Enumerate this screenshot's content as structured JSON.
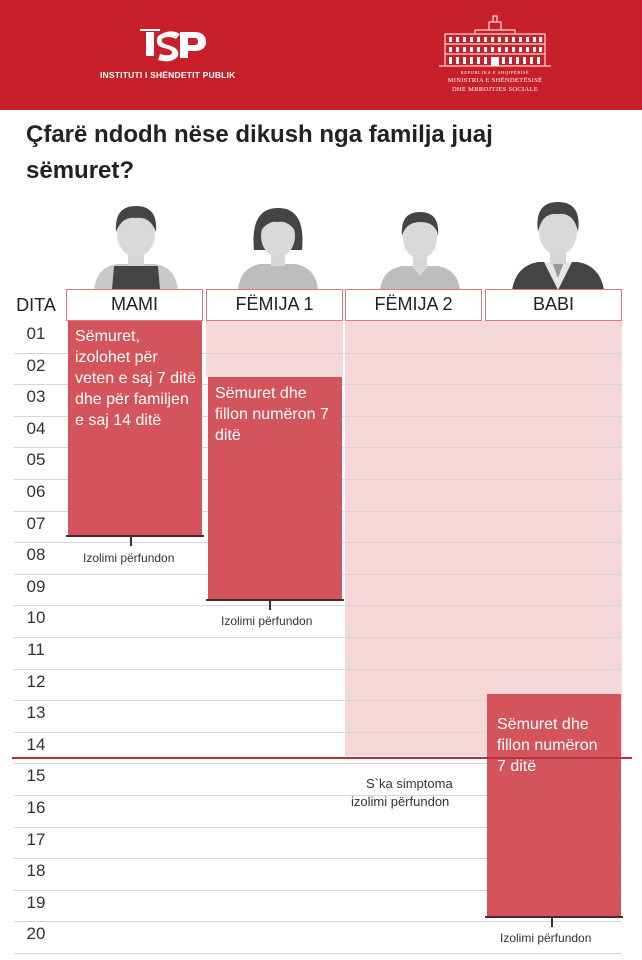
{
  "header": {
    "left_org": "INSTITUTI I SHËNDETIT PUBLIK",
    "left_mark": "ISP",
    "right_line1": "REPUBLIKA E SHQIPËRISË",
    "right_line2": "MINISTRIA E SHËNDETËSISË",
    "right_line3": "DHE MBROJTJES SOCIALE",
    "bg_color": "#c8202b"
  },
  "title": "Çfarë ndodh nëse dikush nga familja juaj sëmuret?",
  "day_label": "DITA",
  "days": [
    "01",
    "02",
    "03",
    "04",
    "05",
    "06",
    "07",
    "08",
    "09",
    "10",
    "11",
    "12",
    "13",
    "14",
    "15",
    "16",
    "17",
    "18",
    "19",
    "20"
  ],
  "columns": [
    {
      "label": "MAMI",
      "avatar": "woman-avatar-icon"
    },
    {
      "label": "FËMIJA 1",
      "avatar": "girl-avatar-icon"
    },
    {
      "label": "FËMIJA 2",
      "avatar": "boy-avatar-icon"
    },
    {
      "label": "BABI",
      "avatar": "man-avatar-icon"
    }
  ],
  "bars": {
    "mami": "Sëmuret, izolohet për veten e saj 7 ditë dhe për familjen e saj 14 ditë",
    "femija1": "Sëmuret dhe fillon numëron 7 ditë",
    "babi": "Sëmuret dhe fillon numëron 7 ditë"
  },
  "end_labels": {
    "mami": "Izolimi përfundon",
    "femija1": "Izolimi përfundon",
    "babi": "Izolimi përfundon"
  },
  "femija2_note": {
    "line1": "S`ka simptoma",
    "line2": "izolimi përfundon"
  },
  "colors": {
    "bar": "#d4545b",
    "pink": "#f5d7d9",
    "accent_line": "#b7313a"
  }
}
